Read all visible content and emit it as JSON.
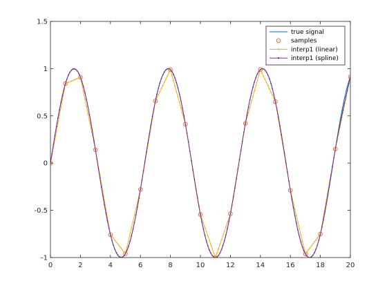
{
  "chart_data": {
    "type": "line",
    "title": "",
    "xlabel": "",
    "ylabel": "",
    "xlim": [
      0,
      20
    ],
    "ylim": [
      -1,
      1.5
    ],
    "xticks": [
      0,
      2,
      4,
      6,
      8,
      10,
      12,
      14,
      16,
      18,
      20
    ],
    "yticks": [
      -1,
      -0.5,
      0,
      0.5,
      1,
      1.5
    ],
    "xtick_labels": [
      "0",
      "2",
      "4",
      "6",
      "8",
      "10",
      "12",
      "14",
      "16",
      "18",
      "20"
    ],
    "ytick_labels": [
      "-1",
      "-0.5",
      "0",
      "0.5",
      "1",
      "1.5"
    ],
    "grid": false,
    "legend_position": "top-right",
    "series": [
      {
        "name": "true signal",
        "style": "line",
        "color": "#0072BD",
        "function": "sin(x)",
        "x_range": [
          0,
          20
        ]
      },
      {
        "name": "samples",
        "style": "markers",
        "marker": "o",
        "color": "#D95319",
        "x": [
          0,
          1,
          2,
          3,
          4,
          5,
          6,
          7,
          8,
          9,
          10,
          11,
          12,
          13,
          14,
          15,
          16,
          17,
          18,
          19,
          20
        ],
        "y": [
          0,
          0.8415,
          0.9093,
          0.1411,
          -0.7568,
          -0.9589,
          -0.2794,
          0.657,
          0.9894,
          0.4121,
          -0.544,
          -1.0,
          -0.5366,
          0.4202,
          0.9906,
          0.6503,
          -0.2879,
          -0.9614,
          -0.751,
          0.1499,
          0.9129
        ]
      },
      {
        "name": "interp1 (linear)",
        "style": "line+dots",
        "color": "#EDB120",
        "x": [
          0,
          1,
          2,
          3,
          4,
          5,
          6,
          7,
          8,
          9,
          10,
          11,
          12,
          13,
          14,
          15,
          16,
          17,
          18,
          19,
          20
        ],
        "y": [
          0,
          0.8415,
          0.9093,
          0.1411,
          -0.7568,
          -0.9589,
          -0.2794,
          0.657,
          0.9894,
          0.4121,
          -0.544,
          -1.0,
          -0.5366,
          0.4202,
          0.9906,
          0.6503,
          -0.2879,
          -0.9614,
          -0.751,
          0.1499,
          0.9129
        ]
      },
      {
        "name": "interp1 (spline)",
        "style": "line+dots",
        "color": "#7E2F8E",
        "x": [
          0,
          1,
          2,
          3,
          4,
          5,
          6,
          7,
          8,
          9,
          10,
          11,
          12,
          13,
          14,
          15,
          16,
          17,
          18,
          19,
          20
        ],
        "y": [
          0,
          0.8415,
          0.9093,
          0.1411,
          -0.7568,
          -0.9589,
          -0.2794,
          0.657,
          0.9894,
          0.4121,
          -0.544,
          -1.0,
          -0.5366,
          0.4202,
          0.9906,
          0.6503,
          -0.2879,
          -0.9614,
          -0.751,
          0.1499,
          0.9129
        ]
      }
    ]
  }
}
